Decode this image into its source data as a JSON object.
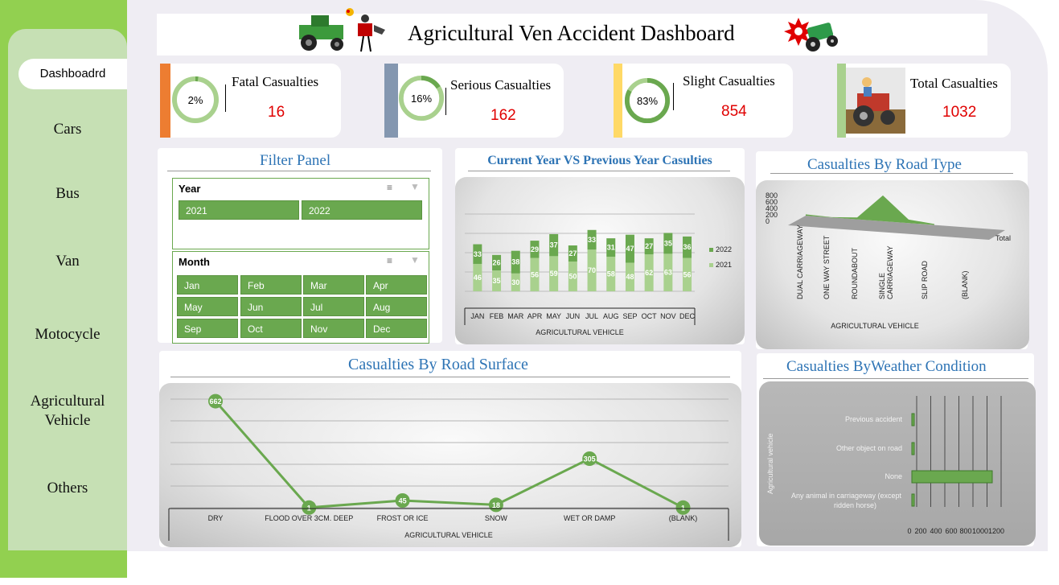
{
  "header": {
    "title": "Agricultural Ven Accident Dashboard"
  },
  "sidebar": {
    "active": "Dashboadrd",
    "items": [
      "Cars",
      "Bus",
      "Van",
      "Motocycle",
      "Agricultural Vehicle",
      "Others"
    ]
  },
  "kpis": [
    {
      "label": "Fatal Casualties",
      "percent_text": "2%",
      "percent": 0.02,
      "value": "16",
      "accent": "#ed7d31"
    },
    {
      "label": "Serious Casualties",
      "percent_text": "16%",
      "percent": 0.16,
      "value": "162",
      "accent": "#8497b0"
    },
    {
      "label": "Slight Casualties",
      "percent_text": "83%",
      "percent": 0.83,
      "value": "854",
      "accent": "#ffd966"
    },
    {
      "label": "Total Casualties",
      "value": "1032",
      "accent": "#a9d18e"
    }
  ],
  "filter": {
    "title": "Filter Panel",
    "year_label": "Year",
    "years": [
      "2021",
      "2022"
    ],
    "month_label": "Month",
    "months": [
      "Jan",
      "Feb",
      "Mar",
      "Apr",
      "May",
      "Jun",
      "Jul",
      "Aug",
      "Sep",
      "Oct",
      "Nov",
      "Dec"
    ]
  },
  "colors": {
    "green_dark": "#6aa84f",
    "green_light": "#a9d18e",
    "title_blue": "#2e74b5",
    "value_red": "#e00000",
    "sidebar_green": "#92d050"
  },
  "chart_data": [
    {
      "type": "bar",
      "title": "Current Year VS Previous Year Casulties",
      "xlabel": "AGRICULTURAL VEHICLE",
      "categories": [
        "JAN",
        "FEB",
        "MAR",
        "APR",
        "MAY",
        "JUN",
        "JUL",
        "AUG",
        "SEP",
        "OCT",
        "NOV",
        "DEC"
      ],
      "series": [
        {
          "name": "2021",
          "values": [
            46,
            35,
            30,
            56,
            59,
            50,
            70,
            58,
            48,
            62,
            63,
            56
          ]
        },
        {
          "name": "2022",
          "values": [
            33,
            26,
            38,
            29,
            37,
            27,
            33,
            31,
            47,
            27,
            35,
            36
          ]
        }
      ],
      "stacked": true,
      "legend": "right"
    },
    {
      "type": "area",
      "title": "Casualties By Road Type",
      "xlabel": "AGRICULTURAL VEHICLE",
      "categories": [
        "DUAL CARRIAGEWAY",
        "ONE WAY STREET",
        "ROUNDABOUT",
        "SINGLE CARRIAGEWAY",
        "SLIP ROAD",
        "(BLANK)"
      ],
      "series": [
        {
          "name": "Total",
          "values": [
            40,
            10,
            60,
            800,
            110,
            30
          ]
        }
      ],
      "yticks": [
        "800",
        "600",
        "400",
        "200",
        "0"
      ]
    },
    {
      "type": "line",
      "title": "Casualties By Road Surface",
      "xlabel": "AGRICULTURAL VEHICLE",
      "categories": [
        "DRY",
        "FLOOD OVER 3CM. DEEP",
        "FROST OR ICE",
        "SNOW",
        "WET OR DAMP",
        "(BLANK)"
      ],
      "values": [
        662,
        1,
        45,
        18,
        305,
        1
      ]
    },
    {
      "type": "bar",
      "title": "Casualties ByWeather Condition",
      "ylabel": "Agricultural vehicle",
      "orientation": "horizontal",
      "categories": [
        "Previous accident",
        "Other object on road",
        "None",
        "Any animal in carriageway (except ridden horse)"
      ],
      "values": [
        5,
        5,
        1000,
        5
      ],
      "xticks": [
        "0",
        "200",
        "400",
        "600",
        "800",
        "1000",
        "1200"
      ]
    }
  ]
}
